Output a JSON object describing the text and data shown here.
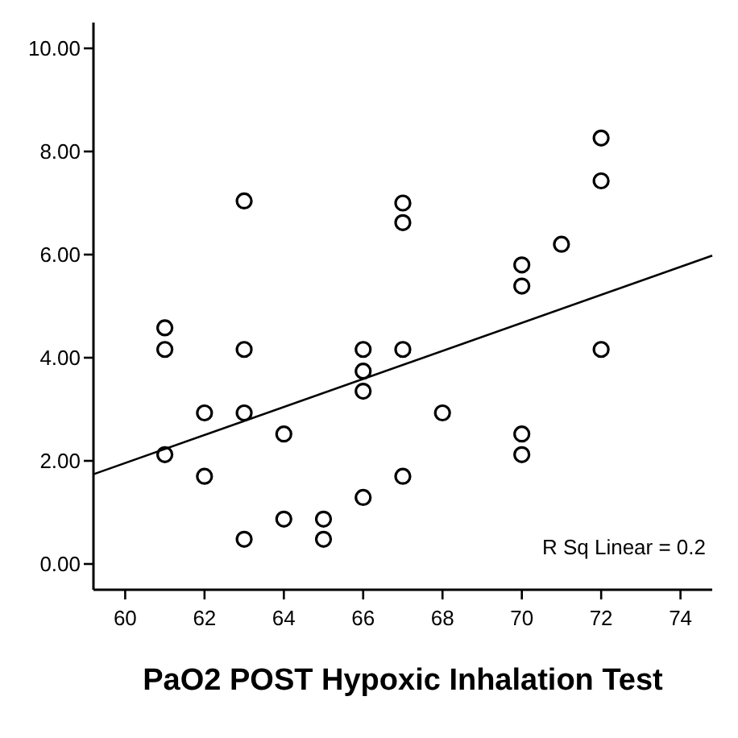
{
  "chart_data": {
    "type": "scatter",
    "xlabel": "PaO2 POST Hypoxic Inhalation Test",
    "xlim": [
      59.2,
      74.8
    ],
    "xticks": [
      60,
      62,
      64,
      66,
      68,
      70,
      72,
      74
    ],
    "ylim": [
      -0.5,
      10.5
    ],
    "yticks": [
      {
        "value": 0,
        "label": "0.00"
      },
      {
        "value": 2,
        "label": "2.00"
      },
      {
        "value": 4,
        "label": "4.00"
      },
      {
        "value": 6,
        "label": "6.00"
      },
      {
        "value": 8,
        "label": "8.00"
      },
      {
        "value": 10,
        "label": "10.00"
      }
    ],
    "grid": false,
    "annotations": [
      "R Sq Linear = 0.2"
    ],
    "series": [
      {
        "marker": "circle",
        "color": "#000000",
        "x": [
          61,
          61,
          61,
          62,
          62,
          63,
          63,
          63,
          63,
          64,
          64,
          65,
          65,
          66,
          66,
          66,
          66,
          67,
          67,
          67,
          67,
          68,
          70,
          70,
          70,
          70,
          71,
          72,
          72,
          72
        ],
        "values": [
          4.58,
          4.16,
          2.12,
          2.93,
          1.7,
          7.04,
          4.16,
          2.93,
          0.48,
          2.52,
          0.87,
          0.87,
          0.48,
          4.16,
          3.74,
          3.35,
          1.29,
          7.0,
          6.62,
          4.16,
          1.7,
          2.93,
          5.8,
          5.39,
          2.52,
          2.12,
          6.2,
          8.26,
          7.43,
          4.16
        ]
      },
      {
        "type": "line",
        "color": "#000000",
        "x": [
          59.2,
          74.8
        ],
        "values": [
          1.74,
          5.98
        ]
      }
    ]
  }
}
